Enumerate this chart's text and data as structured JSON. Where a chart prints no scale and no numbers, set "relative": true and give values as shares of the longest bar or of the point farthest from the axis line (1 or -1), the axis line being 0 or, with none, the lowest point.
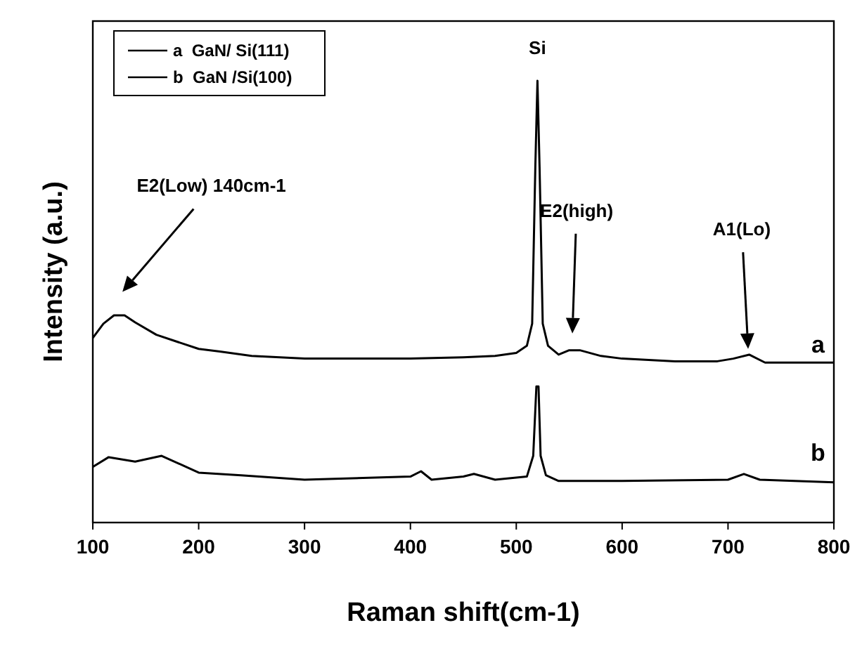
{
  "chart_data": {
    "type": "line",
    "xlabel": "Raman shift(cm-1)",
    "ylabel": "Intensity (a.u.)",
    "relative": true,
    "xlim": [
      100,
      800
    ],
    "xticks": [
      100,
      200,
      300,
      400,
      500,
      600,
      700,
      800
    ],
    "legend": "top left",
    "marker": "none",
    "line_style": "solid",
    "grid": false,
    "series": [
      {
        "name": "a  GaN/ Si(111)",
        "color": "#000000",
        "x": [
          100,
          110,
          120,
          130,
          140,
          160,
          180,
          200,
          220,
          250,
          300,
          400,
          450,
          480,
          500,
          510,
          515,
          518,
          520,
          522,
          525,
          530,
          540,
          550,
          560,
          580,
          600,
          650,
          690,
          705,
          720,
          735,
          800
        ],
        "values": [
          0.418,
          0.45,
          0.469,
          0.469,
          0.453,
          0.425,
          0.409,
          0.393,
          0.387,
          0.377,
          0.371,
          0.371,
          0.374,
          0.377,
          0.384,
          0.4,
          0.45,
          0.805,
          1.0,
          0.805,
          0.45,
          0.4,
          0.38,
          0.39,
          0.39,
          0.377,
          0.371,
          0.365,
          0.365,
          0.371,
          0.38,
          0.362,
          0.362
        ]
      },
      {
        "name": "b  GaN /Si(100)",
        "color": "#000000",
        "x": [
          100,
          115,
          140,
          165,
          200,
          240,
          300,
          400,
          410,
          420,
          450,
          460,
          480,
          510,
          516,
          519,
          521,
          523,
          528,
          540,
          600,
          700,
          715,
          730,
          800
        ],
        "values": [
          0.126,
          0.148,
          0.138,
          0.151,
          0.113,
          0.107,
          0.097,
          0.104,
          0.116,
          0.097,
          0.104,
          0.11,
          0.097,
          0.104,
          0.151,
          0.308,
          0.308,
          0.151,
          0.107,
          0.094,
          0.094,
          0.097,
          0.11,
          0.097,
          0.091
        ]
      }
    ],
    "annotations": [
      "E2(Low) 140cm-1",
      "E2(high)",
      "A1(Lo)",
      "Si",
      "a",
      "b"
    ]
  }
}
